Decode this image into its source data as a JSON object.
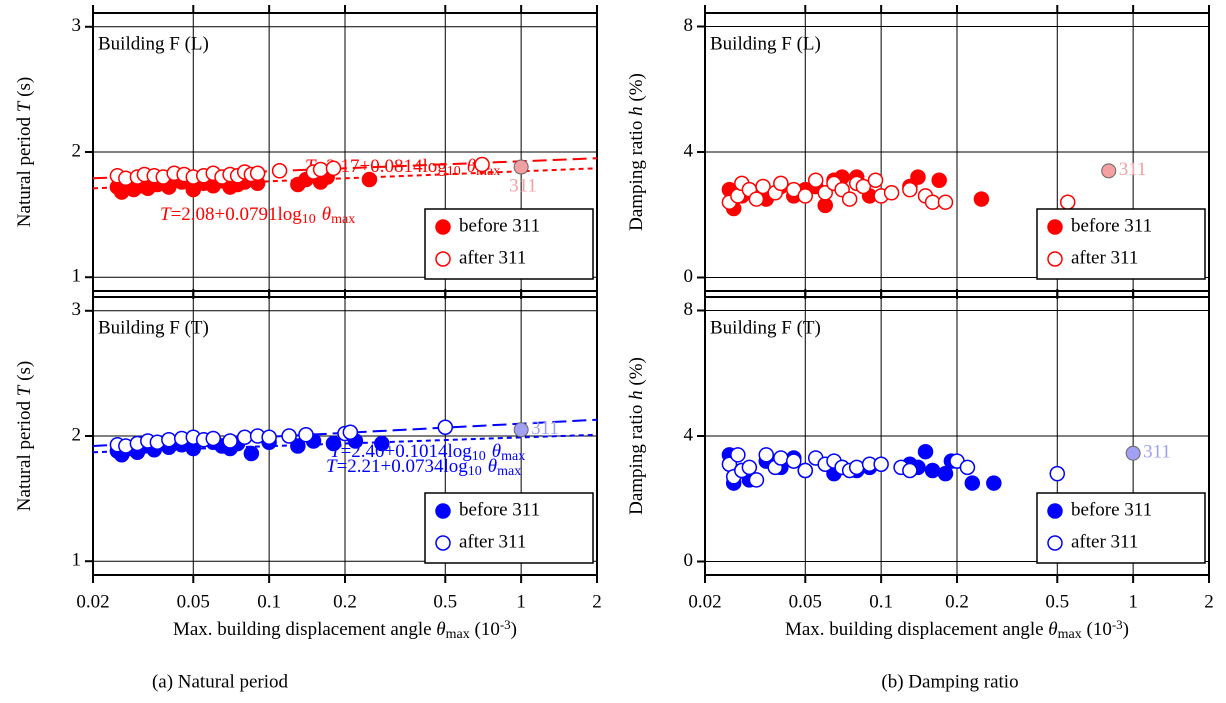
{
  "captions": [
    "(a) Natural period",
    "(b) Damping ratio"
  ],
  "chart_data": [
    {
      "type": "scatter",
      "title": "Building F (L)",
      "ylabel": [
        "Natural period ",
        "T",
        " (s)"
      ],
      "xscale": "log",
      "xlim": [
        0.02,
        2
      ],
      "xticks": [
        0.02,
        0.05,
        0.1,
        0.2,
        0.5,
        1,
        2
      ],
      "ylim": [
        0.89,
        3.11
      ],
      "yticks": [
        1,
        2,
        3
      ],
      "grid": true,
      "legend": "lower right",
      "series": [
        {
          "name": "before 311",
          "color": "#ff0000",
          "filled": true,
          "x": [
            0.025,
            0.026,
            0.027,
            0.029,
            0.031,
            0.033,
            0.036,
            0.04,
            0.045,
            0.05,
            0.055,
            0.06,
            0.065,
            0.07,
            0.075,
            0.08,
            0.09,
            0.13,
            0.14,
            0.16,
            0.17,
            0.25
          ],
          "values": [
            1.72,
            1.68,
            1.75,
            1.7,
            1.73,
            1.71,
            1.74,
            1.72,
            1.76,
            1.7,
            1.75,
            1.73,
            1.77,
            1.72,
            1.74,
            1.76,
            1.75,
            1.74,
            1.78,
            1.76,
            1.8,
            1.78
          ]
        },
        {
          "name": "after 311",
          "color": "#ff0000",
          "filled": false,
          "x": [
            0.025,
            0.027,
            0.03,
            0.032,
            0.035,
            0.038,
            0.042,
            0.046,
            0.05,
            0.055,
            0.06,
            0.065,
            0.07,
            0.075,
            0.08,
            0.085,
            0.09,
            0.11,
            0.15,
            0.16,
            0.18,
            0.7
          ],
          "values": [
            1.81,
            1.79,
            1.8,
            1.82,
            1.81,
            1.8,
            1.83,
            1.82,
            1.8,
            1.81,
            1.83,
            1.8,
            1.82,
            1.81,
            1.84,
            1.82,
            1.83,
            1.85,
            1.84,
            1.86,
            1.87,
            1.9
          ]
        }
      ],
      "highlight": {
        "label": "311",
        "x": 1,
        "y": 1.88,
        "color": "#f4a0a0"
      },
      "fits": [
        {
          "label": [
            "T",
            "=2.17+0.0814log",
            "10",
            "θ",
            "max"
          ],
          "color": "#ff0000",
          "dash": "long",
          "x": [
            0.02,
            2
          ],
          "values": [
            1.79,
            1.95
          ]
        },
        {
          "label": [
            "T",
            "=2.08+0.0791log",
            "10",
            "θ",
            "max"
          ],
          "color": "#ff0000",
          "dash": "short",
          "x": [
            0.02,
            2
          ],
          "values": [
            1.71,
            1.87
          ]
        }
      ]
    },
    {
      "type": "scatter",
      "title": "Building F (L)",
      "ylabel": [
        "Damping ratio ",
        "h",
        " (%)"
      ],
      "xscale": "log",
      "xlim": [
        0.02,
        2
      ],
      "xticks": [
        0.02,
        0.05,
        0.1,
        0.2,
        0.5,
        1,
        2
      ],
      "ylim": [
        -0.43,
        8.43
      ],
      "yticks": [
        0,
        4,
        8
      ],
      "grid": true,
      "legend": "lower right",
      "series": [
        {
          "name": "before 311",
          "color": "#ff0000",
          "filled": true,
          "x": [
            0.025,
            0.026,
            0.028,
            0.03,
            0.035,
            0.04,
            0.045,
            0.05,
            0.055,
            0.06,
            0.065,
            0.07,
            0.08,
            0.09,
            0.13,
            0.14,
            0.17,
            0.25
          ],
          "values": [
            2.8,
            2.2,
            2.6,
            2.7,
            2.5,
            2.9,
            2.6,
            2.8,
            2.9,
            2.3,
            3.1,
            3.2,
            3.2,
            2.6,
            2.9,
            3.2,
            3.1,
            2.5
          ]
        },
        {
          "name": "after 311",
          "color": "#ff0000",
          "filled": false,
          "x": [
            0.025,
            0.027,
            0.028,
            0.03,
            0.032,
            0.034,
            0.038,
            0.04,
            0.045,
            0.05,
            0.055,
            0.06,
            0.065,
            0.07,
            0.075,
            0.08,
            0.085,
            0.095,
            0.1,
            0.11,
            0.13,
            0.15,
            0.16,
            0.18,
            0.55
          ],
          "values": [
            2.4,
            2.6,
            3,
            2.8,
            2.5,
            2.9,
            2.7,
            3,
            2.8,
            2.6,
            3.1,
            2.7,
            3,
            2.8,
            2.5,
            3,
            2.9,
            3.1,
            2.6,
            2.7,
            2.8,
            2.6,
            2.4,
            2.4,
            2.4
          ]
        }
      ],
      "highlight": {
        "label": "311",
        "x": 0.8,
        "y": 3.4,
        "color": "#f4a0a0"
      }
    },
    {
      "type": "scatter",
      "title": "Building F (T)",
      "ylabel": [
        "Natural period ",
        "T",
        " (s)"
      ],
      "xlabel": [
        "Max. building displacement angle ",
        "θ",
        "max",
        " (10",
        "-3",
        ")"
      ],
      "xscale": "log",
      "xlim": [
        0.02,
        2
      ],
      "xticks": [
        0.02,
        0.05,
        0.1,
        0.2,
        0.5,
        1,
        2
      ],
      "ylim": [
        0.89,
        3.11
      ],
      "yticks": [
        1,
        2,
        3
      ],
      "grid": true,
      "legend": "lower right",
      "series": [
        {
          "name": "before 311",
          "color": "#0000ff",
          "filled": true,
          "x": [
            0.025,
            0.026,
            0.028,
            0.03,
            0.032,
            0.035,
            0.04,
            0.045,
            0.05,
            0.06,
            0.065,
            0.07,
            0.075,
            0.085,
            0.1,
            0.13,
            0.15,
            0.18,
            0.22,
            0.28
          ],
          "values": [
            1.88,
            1.85,
            1.9,
            1.87,
            1.92,
            1.89,
            1.91,
            1.93,
            1.9,
            1.95,
            1.92,
            1.9,
            1.94,
            1.86,
            1.95,
            1.92,
            1.96,
            1.94,
            1.96,
            1.94
          ]
        },
        {
          "name": "after 311",
          "color": "#0000ff",
          "filled": false,
          "x": [
            0.025,
            0.027,
            0.03,
            0.033,
            0.036,
            0.04,
            0.045,
            0.05,
            0.055,
            0.06,
            0.07,
            0.08,
            0.09,
            0.1,
            0.12,
            0.14,
            0.2,
            0.21,
            0.5
          ],
          "values": [
            1.93,
            1.92,
            1.94,
            1.96,
            1.95,
            1.97,
            1.98,
            1.99,
            1.97,
            1.98,
            1.96,
            1.99,
            2,
            1.99,
            2,
            2.01,
            2.02,
            2.03,
            2.07
          ]
        }
      ],
      "highlight": {
        "label": "311",
        "x": 1,
        "y": 2.05,
        "color": "#a0a0f4"
      },
      "fits": [
        {
          "label": [
            "T",
            "=2.40+0.1014log",
            "10",
            "θ",
            "max"
          ],
          "color": "#0000ff",
          "dash": "long",
          "x": [
            0.02,
            2
          ],
          "values": [
            1.92,
            2.13
          ]
        },
        {
          "label": [
            "T",
            "=2.21+0.0734log",
            "10",
            "θ",
            "max"
          ],
          "color": "#0000ff",
          "dash": "short",
          "x": [
            0.02,
            2
          ],
          "values": [
            1.87,
            2.01
          ]
        }
      ]
    },
    {
      "type": "scatter",
      "title": "Building F (T)",
      "ylabel": [
        "Damping ratio ",
        "h",
        " (%)"
      ],
      "xlabel": [
        "Max. building displacement angle ",
        "θ",
        "max",
        " (10",
        "-3",
        ")"
      ],
      "xscale": "log",
      "xlim": [
        0.02,
        2
      ],
      "xticks": [
        0.02,
        0.05,
        0.1,
        0.2,
        0.5,
        1,
        2
      ],
      "ylim": [
        -0.43,
        8.43
      ],
      "yticks": [
        0,
        4,
        8
      ],
      "grid": true,
      "legend": "lower right",
      "series": [
        {
          "name": "before 311",
          "color": "#0000ff",
          "filled": true,
          "x": [
            0.025,
            0.026,
            0.028,
            0.03,
            0.035,
            0.04,
            0.045,
            0.05,
            0.065,
            0.07,
            0.08,
            0.09,
            0.13,
            0.14,
            0.15,
            0.16,
            0.18,
            0.19,
            0.23,
            0.28
          ],
          "values": [
            3.4,
            2.5,
            2.9,
            2.6,
            3.2,
            3,
            3.3,
            2.9,
            2.8,
            3,
            2.9,
            3,
            3.1,
            3,
            3.5,
            2.9,
            2.8,
            3.2,
            2.5,
            2.5
          ]
        },
        {
          "name": "after 311",
          "color": "#0000ff",
          "filled": false,
          "x": [
            0.025,
            0.026,
            0.027,
            0.028,
            0.03,
            0.032,
            0.035,
            0.038,
            0.04,
            0.045,
            0.05,
            0.055,
            0.06,
            0.065,
            0.07,
            0.075,
            0.08,
            0.09,
            0.1,
            0.12,
            0.13,
            0.2,
            0.22,
            0.5
          ],
          "values": [
            3.1,
            2.7,
            3.4,
            2.9,
            3,
            2.6,
            3.4,
            3,
            3.3,
            3.2,
            2.9,
            3.3,
            3.1,
            3.2,
            3,
            2.9,
            3,
            3.1,
            3.1,
            3,
            2.9,
            3.2,
            3,
            2.8
          ]
        }
      ],
      "highlight": {
        "label": "311",
        "x": 1,
        "y": 3.45,
        "color": "#a0a0f4"
      }
    }
  ]
}
